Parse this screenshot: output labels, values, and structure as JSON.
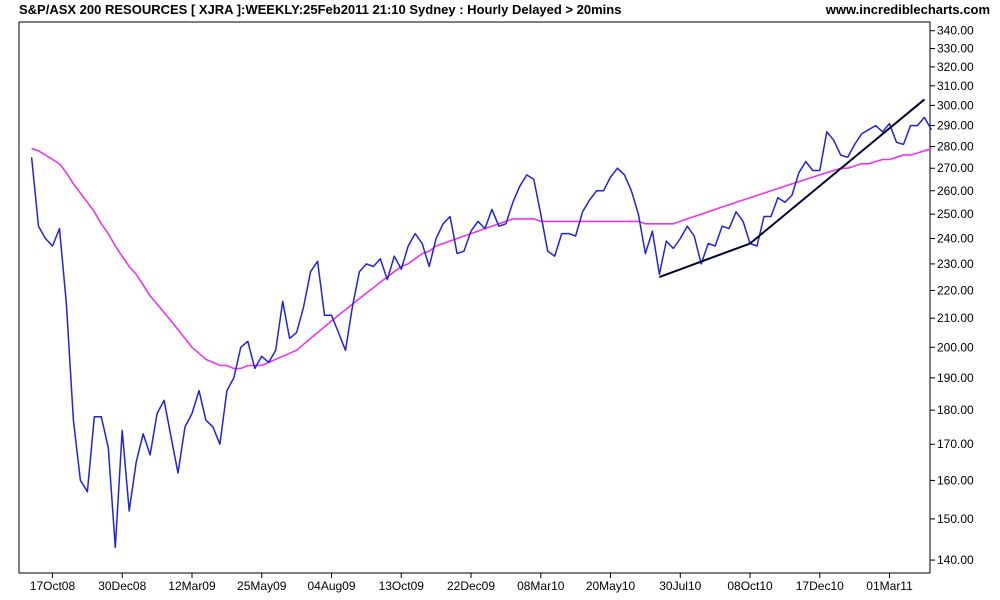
{
  "header": {
    "title": "S&P/ASX 200 RESOURCES [ XJRA ]:WEEKLY:25Feb2011 21:10 Sydney : Hourly Delayed > 20mins",
    "site": "www.incrediblecharts.com"
  },
  "colors": {
    "price": "#2222dd",
    "moving_average": "#ee33ee",
    "trendline": "#000033",
    "frame": "#000000",
    "background": "#ffffff"
  },
  "chart_data": {
    "type": "line",
    "title": "S&P/ASX 200 RESOURCES [ XJRA ]:WEEKLY:25Feb2011 21:10 Sydney : Hourly Delayed > 20mins",
    "xlabel": "",
    "ylabel": "",
    "scale": "log",
    "ylim": [
      137,
      345
    ],
    "y_axis_position": "right",
    "grid": false,
    "legend": "none",
    "y_ticks": [
      340,
      330,
      320,
      310,
      300,
      290,
      280,
      270,
      260,
      250,
      240,
      230,
      220,
      210,
      200,
      190,
      180,
      170,
      160,
      150,
      140
    ],
    "y_tick_labels": [
      "340.00",
      "330.00",
      "320.00",
      "310.00",
      "300.00",
      "290.00",
      "280.00",
      "270.00",
      "260.00",
      "250.00",
      "240.00",
      "230.00",
      "220.00",
      "210.00",
      "200.00",
      "190.00",
      "180.00",
      "170.00",
      "160.00",
      "150.00",
      "140.00"
    ],
    "x_ticks": [
      {
        "week": 3,
        "label": "17Oct08"
      },
      {
        "week": 13,
        "label": "30Dec08"
      },
      {
        "week": 23,
        "label": "12Mar09"
      },
      {
        "week": 33,
        "label": "25May09"
      },
      {
        "week": 43,
        "label": "04Aug09"
      },
      {
        "week": 53,
        "label": "13Oct09"
      },
      {
        "week": 63,
        "label": "22Dec09"
      },
      {
        "week": 73,
        "label": "08Mar10"
      },
      {
        "week": 83,
        "label": "20May10"
      },
      {
        "week": 93,
        "label": "30Jul10"
      },
      {
        "week": 103,
        "label": "08Oct10"
      },
      {
        "week": 113,
        "label": "17Dec10"
      },
      {
        "week": 123,
        "label": "01Mar11"
      }
    ],
    "x_range": [
      -1.8,
      128.8
    ],
    "series": [
      {
        "key": "price",
        "x_start": 0,
        "values": [
          275,
          245,
          240,
          237,
          244,
          215,
          177,
          160,
          157,
          178,
          178,
          169,
          143,
          174,
          152,
          165,
          173,
          167,
          179,
          183,
          172,
          162,
          175,
          179,
          186,
          177,
          175,
          170,
          186,
          190,
          200,
          202,
          193,
          197,
          195,
          199,
          216,
          203,
          205,
          214,
          227,
          231,
          211,
          211,
          205,
          199,
          214,
          227,
          230,
          229,
          232,
          224,
          233,
          228,
          237,
          242,
          238,
          229,
          240,
          246,
          249,
          234,
          235,
          243,
          247,
          244,
          252,
          245,
          246,
          255,
          262,
          267,
          265,
          250,
          235,
          233,
          242,
          242,
          241,
          251,
          256,
          260,
          260,
          266,
          270,
          267,
          260,
          250,
          234,
          243,
          226,
          239,
          236,
          240,
          245,
          241,
          230,
          238,
          237,
          245,
          244,
          251,
          247,
          238,
          237,
          249,
          249,
          257,
          255,
          258,
          268,
          273,
          269,
          269,
          287,
          283,
          276,
          275,
          281,
          286,
          288,
          290,
          287,
          291,
          282,
          281,
          290,
          290,
          294,
          288
        ]
      },
      {
        "key": "moving_average",
        "x_start": 0,
        "values": [
          279,
          278,
          276,
          274,
          272,
          268,
          263,
          259,
          255,
          251,
          246,
          242,
          237,
          233,
          229,
          226,
          222,
          218,
          215,
          212,
          209,
          206,
          203,
          200,
          198,
          196,
          195,
          194,
          194,
          193,
          193,
          194,
          194,
          194,
          195,
          196,
          197,
          198,
          199,
          201,
          203,
          205,
          207,
          209,
          211,
          213,
          215,
          217,
          219,
          221,
          223,
          225,
          227,
          229,
          230,
          232,
          234,
          235,
          237,
          238,
          239,
          240,
          241,
          242,
          243,
          244,
          245,
          246,
          247,
          248,
          248,
          248,
          248,
          247,
          247,
          247,
          247,
          247,
          247,
          247,
          247,
          247,
          247,
          247,
          247,
          247,
          247,
          247,
          246,
          246,
          246,
          246,
          246,
          247,
          248,
          249,
          250,
          251,
          252,
          253,
          254,
          255,
          256,
          257,
          258,
          259,
          260,
          261,
          262,
          263,
          264,
          265,
          266,
          267,
          268,
          269,
          270,
          270,
          271,
          272,
          272,
          273,
          274,
          274,
          275,
          276,
          276,
          277,
          278,
          279
        ]
      }
    ],
    "annotations": [
      {
        "type": "trendline",
        "points": [
          {
            "week": 90,
            "value": 225
          },
          {
            "week": 103,
            "value": 238
          }
        ]
      },
      {
        "type": "trendline",
        "points": [
          {
            "week": 103,
            "value": 238
          },
          {
            "week": 128,
            "value": 303
          }
        ]
      }
    ]
  }
}
